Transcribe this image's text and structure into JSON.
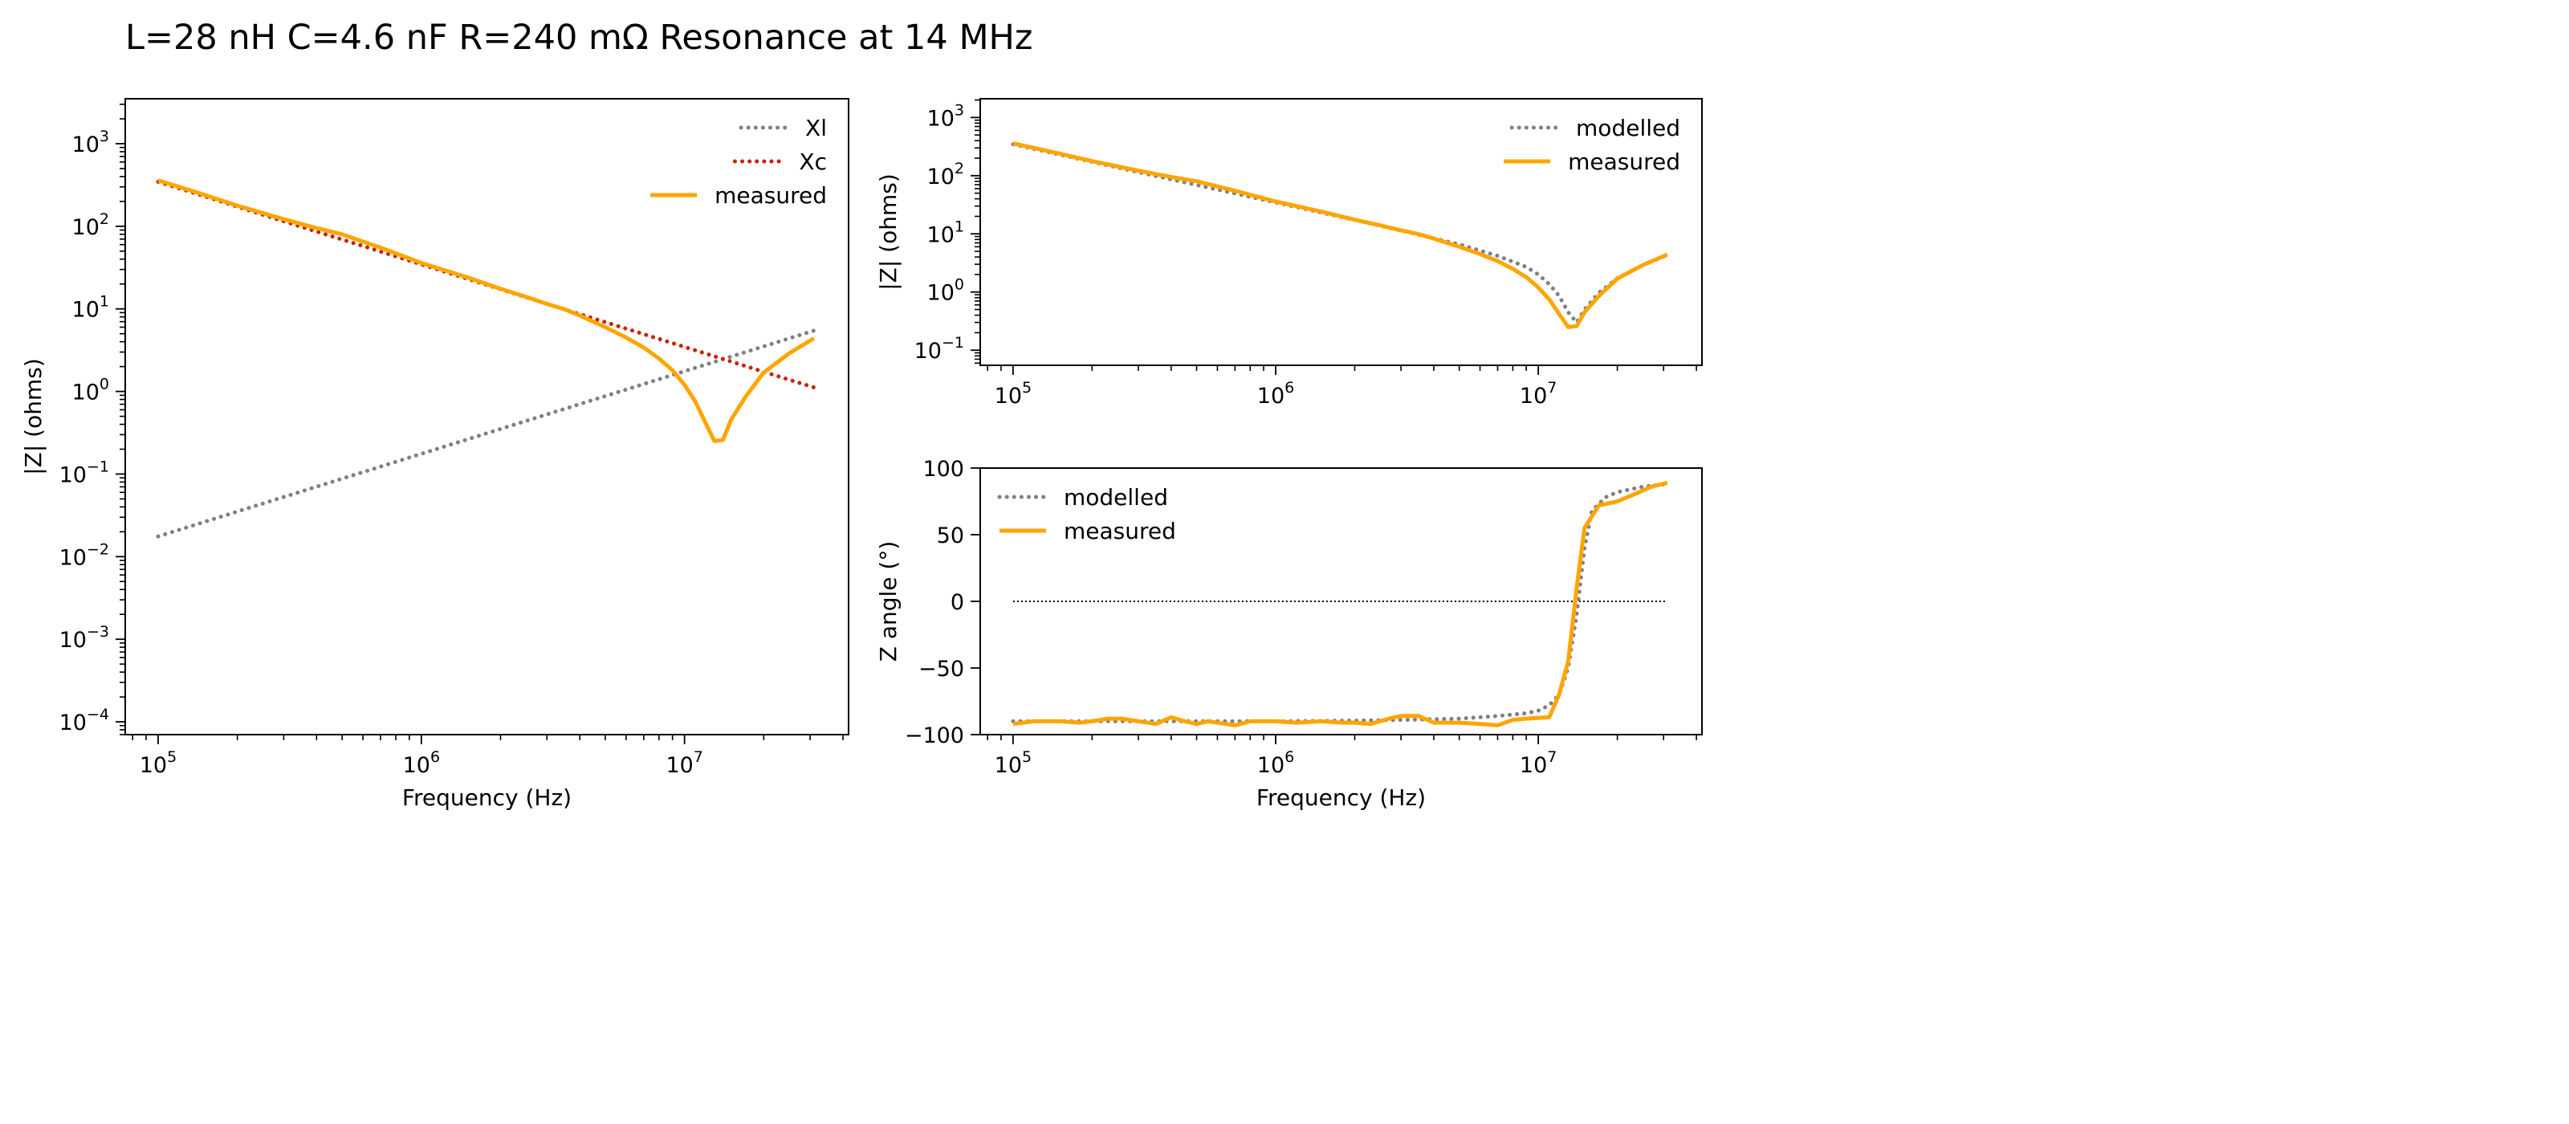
{
  "figure": {
    "title": "L=28 nH   C=4.6 nF   R=240 mΩ   Resonance at 14 MHz"
  },
  "colors": {
    "modelled": "#808080",
    "xc": "#cc2200",
    "measured": "#ffa500",
    "zero_line": "#000000"
  },
  "chart_data": [
    {
      "name": "components",
      "type": "line",
      "xscale": "log",
      "yscale": "log",
      "xlabel": "Frequency (Hz)",
      "ylabel": "|Z| (ohms)",
      "xlim": [
        75000,
        42000000
      ],
      "ylim": [
        7e-05,
        3500
      ],
      "xticks": [
        100000,
        1000000,
        10000000
      ],
      "xtick_labels": [
        [
          "10",
          "5"
        ],
        [
          "10",
          "6"
        ],
        [
          "10",
          "7"
        ]
      ],
      "yticks": [
        0.0001,
        0.001,
        0.01,
        0.1,
        1,
        10,
        100,
        1000
      ],
      "ytick_labels": [
        [
          "10",
          "−4"
        ],
        [
          "10",
          "−3"
        ],
        [
          "10",
          "−2"
        ],
        [
          "10",
          "−1"
        ],
        [
          "10",
          "0"
        ],
        [
          "10",
          "1"
        ],
        [
          "10",
          "2"
        ],
        [
          "10",
          "3"
        ]
      ],
      "legend": {
        "position": "upper right",
        "entries": [
          "Xl",
          "Xc",
          "measured"
        ]
      },
      "series": [
        {
          "name": "Xl",
          "style": "dotted",
          "color": "#808080",
          "x": [
            100000,
            31000000
          ],
          "y": [
            0.0176,
            5.45
          ]
        },
        {
          "name": "Xc",
          "style": "dotted",
          "color": "#cc2200",
          "x": [
            100000,
            150000,
            200000,
            300000,
            500000,
            700000,
            1000000,
            1500000,
            2000000,
            3000000,
            5000000,
            7000000,
            10000000,
            15000000,
            20000000,
            31000000
          ],
          "y": [
            346,
            231,
            173,
            115,
            69.2,
            49.4,
            34.6,
            23.1,
            17.3,
            11.5,
            6.92,
            4.94,
            3.46,
            2.31,
            1.73,
            1.12
          ]
        },
        {
          "name": "measured",
          "style": "solid",
          "color": "#ffa500",
          "x": [
            100000,
            150000,
            200000,
            300000,
            400000,
            500000,
            700000,
            1000000,
            1500000,
            2000000,
            2500000,
            3000000,
            3500000,
            4000000,
            5000000,
            6000000,
            7000000,
            8000000,
            9000000,
            10000000,
            11000000,
            12000000,
            13000000,
            14000000,
            15000000,
            17000000,
            20000000,
            25000000,
            31000000
          ],
          "y": [
            360,
            240,
            178,
            122,
            95,
            80,
            55,
            36,
            24,
            17.5,
            14,
            11.5,
            9.9,
            8.3,
            6,
            4.5,
            3.4,
            2.5,
            1.8,
            1.2,
            0.75,
            0.42,
            0.25,
            0.26,
            0.45,
            0.85,
            1.7,
            2.9,
            4.4
          ]
        }
      ]
    },
    {
      "name": "magnitude",
      "type": "line",
      "xscale": "log",
      "yscale": "log",
      "xlabel": "",
      "ylabel": "|Z| (ohms)",
      "xlim": [
        75000,
        42000000
      ],
      "ylim": [
        0.055,
        2100
      ],
      "xticks": [
        100000,
        1000000,
        10000000
      ],
      "xtick_labels": [
        [
          "10",
          "5"
        ],
        [
          "10",
          "6"
        ],
        [
          "10",
          "7"
        ]
      ],
      "yticks": [
        0.1,
        1,
        10,
        100,
        1000
      ],
      "ytick_labels": [
        [
          "10",
          "−1"
        ],
        [
          "10",
          "0"
        ],
        [
          "10",
          "1"
        ],
        [
          "10",
          "2"
        ],
        [
          "10",
          "3"
        ]
      ],
      "legend": {
        "position": "upper right",
        "entries": [
          "modelled",
          "measured"
        ]
      },
      "series": [
        {
          "name": "modelled",
          "style": "dotted",
          "color": "#808080",
          "x": [
            100000,
            150000,
            200000,
            300000,
            500000,
            700000,
            1000000,
            1500000,
            2000000,
            3000000,
            5000000,
            7000000,
            9000000,
            10000000,
            11000000,
            12000000,
            13000000,
            14000000,
            15000000,
            17000000,
            20000000,
            25000000,
            31000000
          ],
          "y": [
            346,
            231,
            173,
            115,
            69.2,
            49.4,
            34.6,
            23.1,
            17.3,
            11.4,
            6.6,
            4.2,
            2.7,
            2.0,
            1.37,
            0.86,
            0.45,
            0.3,
            0.5,
            0.97,
            1.73,
            2.9,
            4.3
          ]
        },
        {
          "name": "measured",
          "style": "solid",
          "color": "#ffa500",
          "x": [
            100000,
            150000,
            200000,
            300000,
            400000,
            500000,
            700000,
            1000000,
            1500000,
            2000000,
            2500000,
            3000000,
            3500000,
            4000000,
            5000000,
            6000000,
            7000000,
            8000000,
            9000000,
            10000000,
            11000000,
            12000000,
            13000000,
            14000000,
            15000000,
            17000000,
            20000000,
            25000000,
            31000000
          ],
          "y": [
            360,
            240,
            178,
            122,
            95,
            80,
            55,
            36,
            24,
            17.5,
            14,
            11.5,
            9.9,
            8.3,
            6,
            4.5,
            3.4,
            2.5,
            1.8,
            1.2,
            0.75,
            0.42,
            0.25,
            0.26,
            0.45,
            0.85,
            1.7,
            2.9,
            4.4
          ]
        }
      ]
    },
    {
      "name": "phase",
      "type": "line",
      "xscale": "log",
      "yscale": "linear",
      "xlabel": "Frequency (Hz)",
      "ylabel": "Z angle (°)",
      "xlim": [
        75000,
        42000000
      ],
      "ylim": [
        -100,
        100
      ],
      "xticks": [
        100000,
        1000000,
        10000000
      ],
      "xtick_labels": [
        [
          "10",
          "5"
        ],
        [
          "10",
          "6"
        ],
        [
          "10",
          "7"
        ]
      ],
      "yticks": [
        -100,
        -50,
        0,
        50,
        100
      ],
      "ytick_labels": [
        [
          "−100"
        ],
        [
          "−50"
        ],
        [
          "0"
        ],
        [
          "50"
        ],
        [
          "100"
        ]
      ],
      "legend": {
        "position": "upper left",
        "entries": [
          "modelled",
          "measured"
        ]
      },
      "zero_line": {
        "y": 0,
        "x": [
          100000,
          31000000
        ]
      },
      "series": [
        {
          "name": "modelled",
          "style": "dotted",
          "color": "#808080",
          "x": [
            100000,
            500000,
            1000000,
            2000000,
            3000000,
            5000000,
            7000000,
            9000000,
            10000000,
            11000000,
            12000000,
            13000000,
            14000000,
            15000000,
            16000000,
            18000000,
            20000000,
            25000000,
            31000000
          ],
          "y": [
            -90,
            -90,
            -90,
            -89.5,
            -89,
            -88,
            -86,
            -84,
            -82,
            -78,
            -70,
            -50,
            -10,
            40,
            68,
            78,
            82,
            86,
            88
          ]
        },
        {
          "name": "measured",
          "style": "solid",
          "color": "#ffa500",
          "x": [
            100000,
            120000,
            150000,
            180000,
            200000,
            230000,
            260000,
            300000,
            350000,
            400000,
            450000,
            500000,
            550000,
            600000,
            700000,
            800000,
            1000000,
            1200000,
            1500000,
            1800000,
            2000000,
            2300000,
            2700000,
            3000000,
            3500000,
            4000000,
            5000000,
            6000000,
            7000000,
            8000000,
            9000000,
            11000000,
            12000000,
            13000000,
            14000000,
            15000000,
            17000000,
            20000000,
            23000000,
            27000000,
            31000000
          ],
          "y": [
            -92,
            -90,
            -90,
            -91,
            -90,
            -88,
            -88,
            -90,
            -92,
            -87,
            -90,
            -92,
            -90,
            -91,
            -93,
            -90,
            -90,
            -91,
            -90,
            -91,
            -91,
            -92,
            -88,
            -86,
            -86,
            -91,
            -91,
            -92,
            -93,
            -89,
            -88,
            -87,
            -70,
            -45,
            10,
            55,
            72,
            75,
            80,
            86,
            89
          ]
        }
      ]
    }
  ]
}
